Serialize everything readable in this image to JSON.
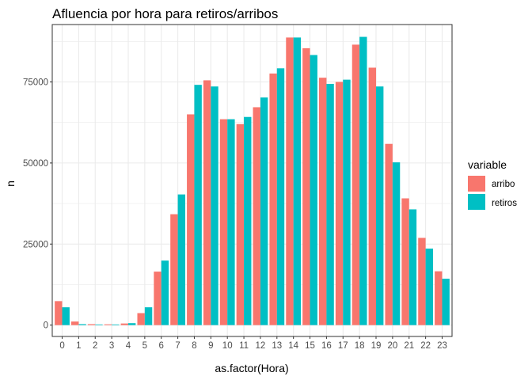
{
  "chart_data": {
    "type": "bar",
    "title": "Afluencia por hora para retiros/arribos",
    "xlabel": "as.factor(Hora)",
    "ylabel": "n",
    "categories": [
      "0",
      "1",
      "2",
      "3",
      "4",
      "5",
      "6",
      "7",
      "8",
      "9",
      "10",
      "11",
      "12",
      "13",
      "14",
      "15",
      "16",
      "17",
      "18",
      "19",
      "20",
      "21",
      "22",
      "23"
    ],
    "ylim": [
      -3500,
      92700
    ],
    "yticks": [
      0,
      25000,
      50000,
      75000
    ],
    "ytick_labels": [
      "0",
      "25000",
      "50000",
      "75000"
    ],
    "grid": true,
    "legend": {
      "title": "variable",
      "position": "right"
    },
    "series": [
      {
        "name": "arribo",
        "color": "#F8766D",
        "values": [
          7400,
          1100,
          300,
          250,
          500,
          3700,
          16500,
          34200,
          65000,
          75500,
          63500,
          62000,
          67200,
          77600,
          88700,
          85400,
          76300,
          75000,
          86500,
          79400,
          55900,
          39100,
          26900,
          16600
        ]
      },
      {
        "name": "retiros",
        "color": "#00BFC4",
        "values": [
          5500,
          300,
          200,
          200,
          600,
          5500,
          19900,
          40300,
          74100,
          73600,
          63500,
          64200,
          70200,
          79200,
          88700,
          83300,
          74400,
          75700,
          88900,
          73600,
          50200,
          35700,
          23600,
          14300
        ]
      }
    ]
  }
}
